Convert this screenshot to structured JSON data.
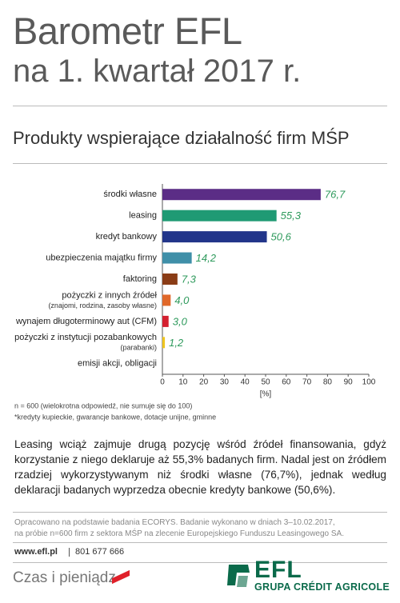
{
  "header": {
    "title": "Barometr EFL",
    "subtitle": "na 1. kwartał 2017 r."
  },
  "chart_data": {
    "type": "bar",
    "orientation": "horizontal",
    "title": "Produkty wspierające działalność firm MŚP",
    "categories": [
      "środki własne",
      "leasing",
      "kredyt bankowy",
      "ubezpieczenia majątku firmy",
      "faktoring",
      "pożyczki z innych źródeł",
      "wynajem długoterminowy aut (CFM)",
      "pożyczki z instytucji pozabankowych",
      "emisji akcji, obligacji"
    ],
    "category_notes": [
      null,
      null,
      null,
      null,
      null,
      "(znajomi, rodzina, zasoby własne)",
      null,
      "(parabanki)",
      null
    ],
    "values": [
      76.7,
      55.3,
      50.6,
      14.2,
      7.3,
      4.0,
      3.0,
      1.2,
      null
    ],
    "value_labels": [
      "76,7",
      "55,3",
      "50,6",
      "14,2",
      "7,3",
      "4,0",
      "3,0",
      "1,2",
      null
    ],
    "colors": [
      "#5b2d86",
      "#1f9a74",
      "#22358a",
      "#3f8fa8",
      "#8a3c16",
      "#e0682a",
      "#d42030",
      "#efc51e",
      null
    ],
    "value_label_color": "#2e9a5c",
    "xlim": [
      0,
      100
    ],
    "xticks": [
      0,
      10,
      20,
      30,
      40,
      50,
      60,
      70,
      80,
      90,
      100
    ],
    "x_label": "[%]",
    "notes": [
      "n = 600 (wielokrotna odpowiedź, nie sumuje się do 100)",
      "*kredyty kupieckie, gwarancje bankowe, dotacje unijne, gminne"
    ]
  },
  "description": "Leasing wciąż zajmuje drugą pozycję wśród źródeł finansowania, gdyż korzystanie z niego deklaruje aż 55,3% badanych firm. Nadal jest on źródłem rzadziej wykorzystywanym niż środki własne (76,7%), jednak według deklaracji badanych wyprzedza obecnie kredyty bankowe (50,6%).",
  "source": [
    "Opracowano na podstawie badania ECORYS. Badanie wykonano w dniach 3–10.02.2017,",
    "na próbie n=600 firm z sektora MŚP na zlecenie Europejskiego Funduszu Leasingowego SA."
  ],
  "contact": {
    "website": "www.efl.pl",
    "phone": "801 677 666"
  },
  "footer": {
    "brand": "Czas i pieniądz",
    "logo": "EFL",
    "group": "GRUPA CRÉDIT AGRICOLE"
  }
}
